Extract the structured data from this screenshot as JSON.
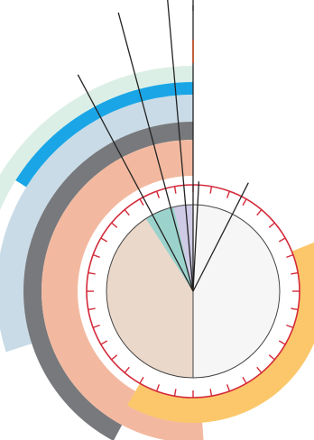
{
  "diagram": {
    "type": "radial-arc-diagram",
    "center_dial": {
      "left_half_color": "#ead8ca",
      "right_half_color": "#f6f6f6",
      "ring_color": "#d42a3a",
      "tick_count": 36
    },
    "arcs": [
      {
        "name": "pale-green",
        "color": "#dcefe6",
        "start_deg": 270,
        "end_deg": 360
      },
      {
        "name": "blue",
        "color": "#1aa6e6",
        "start_deg": 302,
        "end_deg": 360
      },
      {
        "name": "light-blue",
        "color": "#c9dbe7",
        "start_deg": 252,
        "end_deg": 360
      },
      {
        "name": "dark-gray",
        "color": "#77797c",
        "start_deg": 208,
        "end_deg": 360
      },
      {
        "name": "salmon",
        "color": "#f3b9a0",
        "start_deg": 176,
        "end_deg": 360
      },
      {
        "name": "yellow",
        "color": "#fcc76a",
        "start_deg": 68,
        "end_deg": 210
      }
    ],
    "wedges": [
      {
        "name": "teal-wedge",
        "color": "#9bd3cc",
        "start_deg": 327,
        "end_deg": 347
      },
      {
        "name": "lavender-wedge",
        "color": "#cfcbe6",
        "start_deg": 347,
        "end_deg": 360
      }
    ],
    "spokes_deg": [
      3,
      27,
      332,
      345,
      355,
      360
    ],
    "spoke_color": "#222222"
  }
}
